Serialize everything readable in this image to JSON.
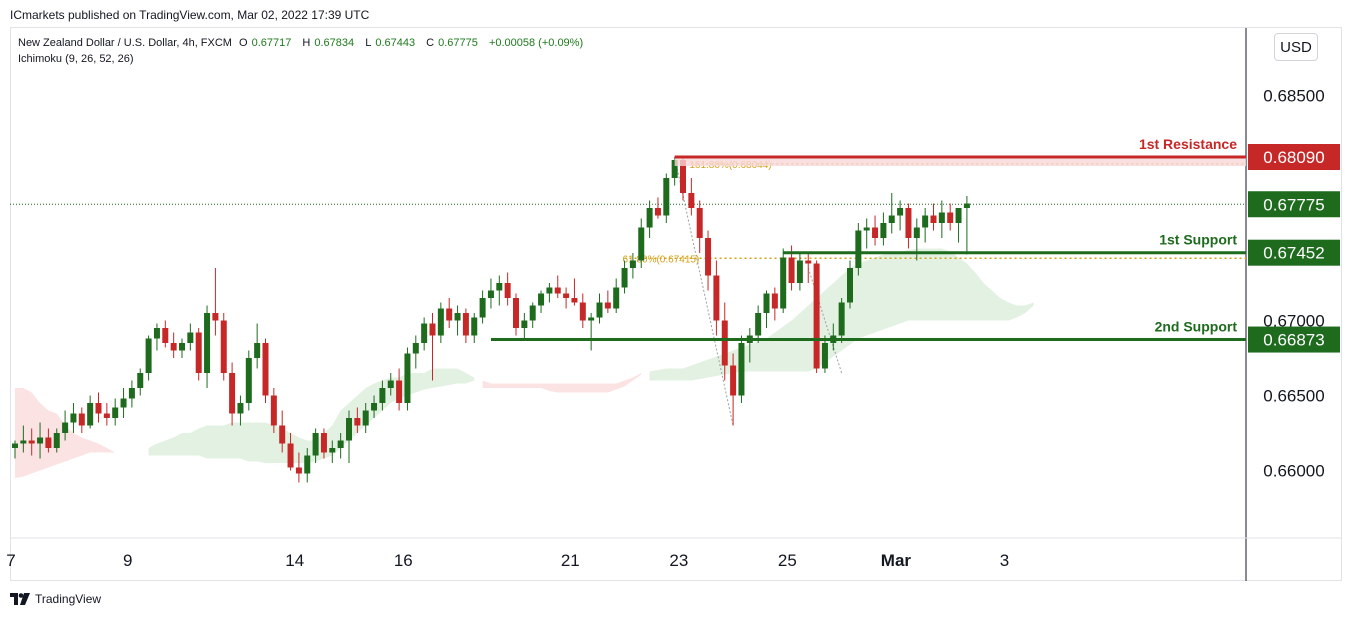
{
  "header": {
    "caption": "ICmarkets published on TradingView.com, Mar 02, 2022 17:39 UTC",
    "symbol": "New Zealand Dollar / U.S. Dollar, 4h, FXCM",
    "open_label": "O",
    "open": "0.67717",
    "high_label": "H",
    "high": "0.67834",
    "low_label": "L",
    "low": "0.67443",
    "close_label": "C",
    "close": "0.67775",
    "change": "+0.00058 (+0.09%)",
    "indicator": "Ichimoku (9, 26, 52, 26)"
  },
  "currency_button": "USD",
  "footer": {
    "brand": "TradingView",
    "logo_icon": "tradingview-logo-icon"
  },
  "colors": {
    "up": "#1e6b1e",
    "down": "#c62828",
    "resistance": "#c62828",
    "support": "#1e6b1e",
    "fib": "#d4a017",
    "cloud_bull": "#e3f1e3",
    "cloud_bear": "#fbe3e3"
  },
  "chart_data": {
    "type": "candlestick",
    "title": "New Zealand Dollar / U.S. Dollar, 4h, FXCM",
    "ylim": [
      0.6555,
      0.6895
    ],
    "y_ticks": [
      "0.68500",
      "0.67000",
      "0.66500",
      "0.66000"
    ],
    "x_ticks": [
      {
        "label": "7",
        "index": 0
      },
      {
        "label": "9",
        "index": 13.5
      },
      {
        "label": "14",
        "index": 33.5
      },
      {
        "label": "16",
        "index": 46.5
      },
      {
        "label": "21",
        "index": 66.5
      },
      {
        "label": "23",
        "index": 79.5
      },
      {
        "label": "25",
        "index": 92.5
      },
      {
        "label": "Mar",
        "index": 105.5
      },
      {
        "label": "3",
        "index": 118.5
      }
    ],
    "candles": [
      [
        0.6615,
        0.662,
        0.6608,
        0.6618
      ],
      [
        0.6618,
        0.663,
        0.6612,
        0.662
      ],
      [
        0.662,
        0.6628,
        0.661,
        0.6618
      ],
      [
        0.6618,
        0.6632,
        0.6608,
        0.6622
      ],
      [
        0.6622,
        0.6628,
        0.6612,
        0.6615
      ],
      [
        0.6615,
        0.6628,
        0.6612,
        0.6625
      ],
      [
        0.6625,
        0.664,
        0.662,
        0.6632
      ],
      [
        0.6632,
        0.6645,
        0.6625,
        0.6638
      ],
      [
        0.6638,
        0.6642,
        0.6625,
        0.663
      ],
      [
        0.663,
        0.665,
        0.6628,
        0.6645
      ],
      [
        0.6645,
        0.6652,
        0.6632,
        0.6638
      ],
      [
        0.6638,
        0.6645,
        0.663,
        0.6635
      ],
      [
        0.6635,
        0.6648,
        0.663,
        0.6642
      ],
      [
        0.6642,
        0.6655,
        0.6635,
        0.6648
      ],
      [
        0.6648,
        0.666,
        0.6642,
        0.6655
      ],
      [
        0.6655,
        0.6668,
        0.665,
        0.6665
      ],
      [
        0.6665,
        0.669,
        0.666,
        0.6688
      ],
      [
        0.6688,
        0.6698,
        0.668,
        0.6695
      ],
      [
        0.6695,
        0.67,
        0.6682,
        0.6685
      ],
      [
        0.6685,
        0.6692,
        0.6675,
        0.668
      ],
      [
        0.668,
        0.6688,
        0.6675,
        0.6685
      ],
      [
        0.6685,
        0.6698,
        0.668,
        0.6692
      ],
      [
        0.6692,
        0.6695,
        0.666,
        0.6665
      ],
      [
        0.6665,
        0.671,
        0.6655,
        0.6705
      ],
      [
        0.6705,
        0.6735,
        0.669,
        0.67
      ],
      [
        0.67,
        0.6705,
        0.666,
        0.6665
      ],
      [
        0.6665,
        0.6672,
        0.663,
        0.6638
      ],
      [
        0.6638,
        0.665,
        0.663,
        0.6645
      ],
      [
        0.6645,
        0.668,
        0.664,
        0.6675
      ],
      [
        0.6675,
        0.6698,
        0.6668,
        0.6685
      ],
      [
        0.6685,
        0.6688,
        0.6645,
        0.665
      ],
      [
        0.665,
        0.6655,
        0.6625,
        0.663
      ],
      [
        0.663,
        0.664,
        0.6612,
        0.6618
      ],
      [
        0.6618,
        0.6625,
        0.66,
        0.6602
      ],
      [
        0.6602,
        0.6612,
        0.6592,
        0.6598
      ],
      [
        0.6598,
        0.6615,
        0.6592,
        0.661
      ],
      [
        0.661,
        0.6628,
        0.6605,
        0.6625
      ],
      [
        0.6625,
        0.6628,
        0.6608,
        0.6612
      ],
      [
        0.6612,
        0.662,
        0.6605,
        0.6615
      ],
      [
        0.6615,
        0.6625,
        0.6608,
        0.662
      ],
      [
        0.662,
        0.664,
        0.6605,
        0.6635
      ],
      [
        0.6635,
        0.6642,
        0.6625,
        0.663
      ],
      [
        0.663,
        0.6645,
        0.6625,
        0.664
      ],
      [
        0.664,
        0.665,
        0.6635,
        0.6645
      ],
      [
        0.6645,
        0.666,
        0.664,
        0.6655
      ],
      [
        0.6655,
        0.6665,
        0.665,
        0.666
      ],
      [
        0.666,
        0.6668,
        0.664,
        0.6645
      ],
      [
        0.6645,
        0.6682,
        0.664,
        0.6678
      ],
      [
        0.6678,
        0.669,
        0.6668,
        0.6685
      ],
      [
        0.6685,
        0.6702,
        0.668,
        0.6698
      ],
      [
        0.6698,
        0.6705,
        0.666,
        0.669
      ],
      [
        0.669,
        0.6712,
        0.6685,
        0.6708
      ],
      [
        0.6708,
        0.6715,
        0.6695,
        0.67
      ],
      [
        0.67,
        0.671,
        0.669,
        0.6705
      ],
      [
        0.6705,
        0.6708,
        0.6685,
        0.669
      ],
      [
        0.669,
        0.6705,
        0.6685,
        0.6702
      ],
      [
        0.6702,
        0.672,
        0.6698,
        0.6715
      ],
      [
        0.6715,
        0.6728,
        0.6708,
        0.672
      ],
      [
        0.672,
        0.673,
        0.671,
        0.6725
      ],
      [
        0.6725,
        0.6732,
        0.671,
        0.6715
      ],
      [
        0.6715,
        0.6718,
        0.669,
        0.6695
      ],
      [
        0.6695,
        0.6705,
        0.6688,
        0.67
      ],
      [
        0.67,
        0.6712,
        0.6695,
        0.671
      ],
      [
        0.671,
        0.672,
        0.6705,
        0.6718
      ],
      [
        0.6718,
        0.6725,
        0.6712,
        0.6722
      ],
      [
        0.6722,
        0.673,
        0.6715,
        0.6718
      ],
      [
        0.6718,
        0.6722,
        0.6708,
        0.6715
      ],
      [
        0.6715,
        0.6728,
        0.671,
        0.6712
      ],
      [
        0.6712,
        0.6718,
        0.6695,
        0.67
      ],
      [
        0.67,
        0.6705,
        0.668,
        0.6702
      ],
      [
        0.6702,
        0.6718,
        0.6698,
        0.6712
      ],
      [
        0.6712,
        0.672,
        0.6705,
        0.6708
      ],
      [
        0.6708,
        0.6728,
        0.6705,
        0.6722
      ],
      [
        0.6722,
        0.674,
        0.6718,
        0.6735
      ],
      [
        0.6735,
        0.6745,
        0.6728,
        0.674
      ],
      [
        0.674,
        0.6768,
        0.6735,
        0.6762
      ],
      [
        0.6762,
        0.678,
        0.6755,
        0.6775
      ],
      [
        0.6775,
        0.6782,
        0.6768,
        0.677
      ],
      [
        0.677,
        0.6798,
        0.6765,
        0.6795
      ],
      [
        0.6795,
        0.6809,
        0.679,
        0.6807
      ],
      [
        0.6807,
        0.681,
        0.678,
        0.6785
      ],
      [
        0.6785,
        0.6795,
        0.677,
        0.6775
      ],
      [
        0.6775,
        0.678,
        0.6745,
        0.6755
      ],
      [
        0.6755,
        0.676,
        0.672,
        0.673
      ],
      [
        0.673,
        0.674,
        0.669,
        0.67
      ],
      [
        0.67,
        0.6712,
        0.666,
        0.667
      ],
      [
        0.667,
        0.6678,
        0.663,
        0.665
      ],
      [
        0.665,
        0.669,
        0.6645,
        0.6685
      ],
      [
        0.6685,
        0.6695,
        0.6672,
        0.669
      ],
      [
        0.669,
        0.671,
        0.6685,
        0.6705
      ],
      [
        0.6705,
        0.672,
        0.6695,
        0.6718
      ],
      [
        0.6718,
        0.6722,
        0.67,
        0.6708
      ],
      [
        0.6708,
        0.6748,
        0.6705,
        0.6742
      ],
      [
        0.6742,
        0.675,
        0.672,
        0.6725
      ],
      [
        0.6725,
        0.6745,
        0.672,
        0.674
      ],
      [
        0.674,
        0.6745,
        0.6725,
        0.6738
      ],
      [
        0.6738,
        0.674,
        0.6665,
        0.6668
      ],
      [
        0.6668,
        0.669,
        0.6665,
        0.6685
      ],
      [
        0.6685,
        0.6698,
        0.668,
        0.669
      ],
      [
        0.669,
        0.6715,
        0.6685,
        0.6712
      ],
      [
        0.6712,
        0.674,
        0.6708,
        0.6735
      ],
      [
        0.6735,
        0.6765,
        0.673,
        0.676
      ],
      [
        0.676,
        0.6768,
        0.6748,
        0.6762
      ],
      [
        0.6762,
        0.677,
        0.675,
        0.6755
      ],
      [
        0.6755,
        0.6772,
        0.675,
        0.6765
      ],
      [
        0.6765,
        0.6785,
        0.6758,
        0.677
      ],
      [
        0.677,
        0.678,
        0.676,
        0.6775
      ],
      [
        0.6775,
        0.6778,
        0.6748,
        0.6755
      ],
      [
        0.6755,
        0.6768,
        0.674,
        0.6762
      ],
      [
        0.6762,
        0.6775,
        0.6752,
        0.677
      ],
      [
        0.677,
        0.6778,
        0.676,
        0.6765
      ],
      [
        0.6765,
        0.678,
        0.6755,
        0.6772
      ],
      [
        0.6772,
        0.6778,
        0.676,
        0.6765
      ],
      [
        0.6765,
        0.6775,
        0.6752,
        0.6775
      ],
      [
        0.6775,
        0.6783,
        0.6744,
        0.6778
      ]
    ],
    "cloud": [
      {
        "from": 0,
        "to": 15,
        "type": "bear",
        "upper": [
          0.6655,
          0.6655,
          0.6652,
          0.6645,
          0.664,
          0.6638,
          0.663,
          0.6625,
          0.6622,
          0.662,
          0.6618,
          0.6615,
          0.6612,
          0.6612,
          0.6612,
          0.661
        ],
        "lower": [
          0.6595,
          0.6596,
          0.6598,
          0.66,
          0.6602,
          0.6604,
          0.6606,
          0.6608,
          0.661,
          0.6612,
          0.6612,
          0.6612,
          0.6612,
          0.6612,
          0.6612,
          0.661
        ]
      },
      {
        "from": 16,
        "to": 55,
        "type": "bull",
        "upper": [
          0.6615,
          0.6618,
          0.662,
          0.6622,
          0.6625,
          0.6625,
          0.6628,
          0.663,
          0.663,
          0.663,
          0.6632,
          0.6632,
          0.6632,
          0.6632,
          0.6632,
          0.663,
          0.6628,
          0.6625,
          0.6622,
          0.662,
          0.662,
          0.6625,
          0.663,
          0.664,
          0.6645,
          0.665,
          0.6655,
          0.6658,
          0.666,
          0.6662,
          0.6662,
          0.6665,
          0.6665,
          0.6665,
          0.6668,
          0.6668,
          0.6668,
          0.6668,
          0.6665,
          0.6662
        ],
        "lower": [
          0.661,
          0.661,
          0.661,
          0.661,
          0.661,
          0.661,
          0.661,
          0.6608,
          0.6608,
          0.6608,
          0.6608,
          0.6608,
          0.6606,
          0.6606,
          0.6605,
          0.6605,
          0.6605,
          0.6605,
          0.6605,
          0.6605,
          0.6606,
          0.6608,
          0.661,
          0.6615,
          0.662,
          0.6625,
          0.663,
          0.6635,
          0.664,
          0.6645,
          0.6648,
          0.665,
          0.6652,
          0.6654,
          0.6655,
          0.6656,
          0.6657,
          0.6658,
          0.6658,
          0.666
        ]
      },
      {
        "from": 56,
        "to": 75,
        "type": "bear",
        "upper": [
          0.666,
          0.6658,
          0.6658,
          0.6658,
          0.6658,
          0.6658,
          0.6658,
          0.6658,
          0.6658,
          0.6658,
          0.6658,
          0.6658,
          0.6658,
          0.6658,
          0.6658,
          0.6658,
          0.6658,
          0.666,
          0.6662,
          0.6665
        ],
        "lower": [
          0.6655,
          0.6655,
          0.6655,
          0.6655,
          0.6655,
          0.6655,
          0.6655,
          0.6655,
          0.6653,
          0.6652,
          0.6652,
          0.6652,
          0.6652,
          0.6652,
          0.6652,
          0.6652,
          0.6654,
          0.6656,
          0.666,
          0.6664
        ]
      },
      {
        "from": 76,
        "to": 122,
        "type": "bull",
        "upper": [
          0.6666,
          0.6667,
          0.6668,
          0.6668,
          0.6668,
          0.667,
          0.6672,
          0.6674,
          0.6676,
          0.6678,
          0.668,
          0.6682,
          0.6684,
          0.6686,
          0.6688,
          0.6692,
          0.6696,
          0.67,
          0.6705,
          0.671,
          0.6715,
          0.672,
          0.6725,
          0.673,
          0.6735,
          0.6738,
          0.674,
          0.6742,
          0.6744,
          0.6745,
          0.6746,
          0.6747,
          0.6748,
          0.6748,
          0.6748,
          0.6748,
          0.6746,
          0.6742,
          0.6738,
          0.6732,
          0.6725,
          0.672,
          0.6715,
          0.6712,
          0.671,
          0.671,
          0.6712
        ],
        "lower": [
          0.666,
          0.666,
          0.666,
          0.666,
          0.666,
          0.666,
          0.6661,
          0.6662,
          0.6663,
          0.6664,
          0.6665,
          0.6666,
          0.6666,
          0.6666,
          0.6666,
          0.6666,
          0.6666,
          0.6666,
          0.6666,
          0.6666,
          0.6668,
          0.6672,
          0.6676,
          0.668,
          0.6684,
          0.6688,
          0.669,
          0.6692,
          0.6694,
          0.6696,
          0.6698,
          0.67,
          0.67,
          0.67,
          0.67,
          0.67,
          0.67,
          0.67,
          0.67,
          0.67,
          0.67,
          0.67,
          0.67,
          0.67,
          0.6702,
          0.6705,
          0.671
        ]
      }
    ],
    "levels": [
      {
        "name": "1st Resistance",
        "value": 0.6809,
        "label": "0.68090",
        "kind": "resistance",
        "from_index": 79
      },
      {
        "name": "1st Support",
        "value": 0.67452,
        "label": "0.67452",
        "kind": "support",
        "from_index": 92
      },
      {
        "name": "2nd Support",
        "value": 0.66873,
        "label": "0.66873",
        "kind": "support",
        "from_index": 57
      }
    ],
    "current_price": {
      "value": 0.67775,
      "label": "0.67775"
    },
    "fibs": [
      {
        "label": "161.80%(0.68044)",
        "value": 0.68044,
        "from_index": 81
      },
      {
        "label": "61.80%(0.67415)",
        "value": 0.67415,
        "from_index": 73
      }
    ],
    "trend_lines": [
      {
        "from_index": 79,
        "from_value": 0.6809,
        "to_index": 86,
        "to_value": 0.663
      },
      {
        "from_index": 95,
        "from_value": 0.6735,
        "to_index": 99,
        "to_value": 0.6665
      }
    ]
  }
}
